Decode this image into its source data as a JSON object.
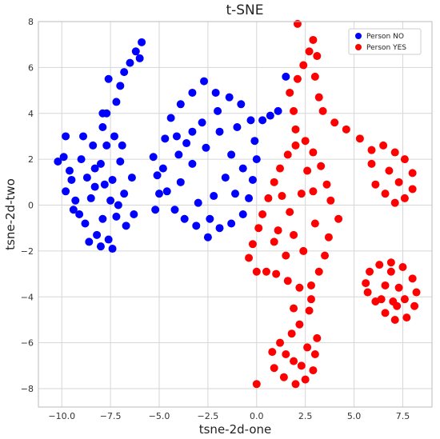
{
  "chart_data": {
    "type": "scatter",
    "title": "t-SNE",
    "xlabel": "tsne-2d-one",
    "ylabel": "tsne-2d-two",
    "xlim": [
      -11.2,
      9.0
    ],
    "ylim": [
      -8.8,
      8.0
    ],
    "grid": true,
    "legend_position": "top-right",
    "x_ticks": [
      -10.0,
      -7.5,
      -5.0,
      -2.5,
      0.0,
      2.5,
      5.0,
      7.5
    ],
    "x_tick_labels": [
      "−10.0",
      "−7.5",
      "−5.0",
      "−2.5",
      "0.0",
      "2.5",
      "5.0",
      "7.5"
    ],
    "y_ticks": [
      -8,
      -6,
      -4,
      -2,
      0,
      2,
      4,
      6,
      8
    ],
    "y_tick_labels": [
      "−8",
      "−6",
      "−4",
      "−2",
      "0",
      "2",
      "4",
      "6",
      "8"
    ],
    "series": [
      {
        "name": "Person NO",
        "color": "#0000ff",
        "points": [
          [
            -10.2,
            1.9
          ],
          [
            -9.9,
            2.1
          ],
          [
            -9.6,
            1.5
          ],
          [
            -9.8,
            0.6
          ],
          [
            -9.3,
            0.2
          ],
          [
            -9.5,
            1.1
          ],
          [
            -9.0,
            2.0
          ],
          [
            -8.7,
            1.2
          ],
          [
            -9.1,
            -0.4
          ],
          [
            -8.5,
            0.3
          ],
          [
            -8.8,
            -0.8
          ],
          [
            -8.2,
            -1.3
          ],
          [
            -8.0,
            -1.8
          ],
          [
            -7.6,
            -1.5
          ],
          [
            -7.9,
            -0.6
          ],
          [
            -8.3,
            0.8
          ],
          [
            -8.0,
            1.8
          ],
          [
            -7.7,
            2.6
          ],
          [
            -8.4,
            2.6
          ],
          [
            -7.9,
            3.4
          ],
          [
            -7.5,
            0.2
          ],
          [
            -7.2,
            -0.5
          ],
          [
            -7.4,
            1.1
          ],
          [
            -7.0,
            1.9
          ],
          [
            -7.3,
            3.0
          ],
          [
            -7.7,
            4.0
          ],
          [
            -7.2,
            4.5
          ],
          [
            -7.0,
            5.2
          ],
          [
            -7.6,
            5.5
          ],
          [
            -6.8,
            5.8
          ],
          [
            -6.5,
            6.2
          ],
          [
            -6.2,
            6.7
          ],
          [
            -5.9,
            7.1
          ],
          [
            -6.0,
            6.4
          ],
          [
            -6.9,
            2.6
          ],
          [
            -6.8,
            0.5
          ],
          [
            -6.7,
            -0.9
          ],
          [
            -7.1,
            0.0
          ],
          [
            -6.4,
            1.2
          ],
          [
            -6.3,
            -0.4
          ],
          [
            -8.9,
            3.0
          ],
          [
            -9.8,
            3.0
          ],
          [
            -7.9,
            4.0
          ],
          [
            -8.6,
            -1.6
          ],
          [
            -7.4,
            -1.9
          ],
          [
            -9.4,
            -0.2
          ],
          [
            -8.3,
            1.6
          ],
          [
            -7.8,
            0.9
          ],
          [
            -5.3,
            2.1
          ],
          [
            -5.1,
            1.3
          ],
          [
            -5.0,
            0.5
          ],
          [
            -5.2,
            -0.2
          ],
          [
            -4.7,
            2.9
          ],
          [
            -4.4,
            3.8
          ],
          [
            -3.9,
            4.4
          ],
          [
            -3.3,
            4.9
          ],
          [
            -2.7,
            5.4
          ],
          [
            -2.1,
            4.9
          ],
          [
            -1.4,
            4.7
          ],
          [
            -0.8,
            4.4
          ],
          [
            -0.3,
            3.7
          ],
          [
            -0.1,
            2.8
          ],
          [
            0.0,
            2.0
          ],
          [
            -0.2,
            1.1
          ],
          [
            -0.4,
            0.3
          ],
          [
            -0.7,
            -0.4
          ],
          [
            -1.3,
            -0.8
          ],
          [
            -1.9,
            -1.0
          ],
          [
            -2.5,
            -1.4
          ],
          [
            -3.1,
            -0.9
          ],
          [
            -3.7,
            -0.6
          ],
          [
            -4.2,
            -0.2
          ],
          [
            -4.6,
            0.6
          ],
          [
            -4.8,
            1.6
          ],
          [
            -3.9,
            1.0
          ],
          [
            -3.3,
            1.8
          ],
          [
            -2.6,
            2.5
          ],
          [
            -1.9,
            3.2
          ],
          [
            -1.3,
            2.2
          ],
          [
            -1.6,
            1.2
          ],
          [
            -2.2,
            0.4
          ],
          [
            -3.0,
            0.1
          ],
          [
            -3.6,
            2.7
          ],
          [
            -2.8,
            3.6
          ],
          [
            -2.0,
            4.1
          ],
          [
            -1.0,
            3.4
          ],
          [
            -0.7,
            1.6
          ],
          [
            -1.1,
            0.5
          ],
          [
            -4.0,
            2.2
          ],
          [
            -3.3,
            3.2
          ],
          [
            0.3,
            3.7
          ],
          [
            0.7,
            3.9
          ],
          [
            1.1,
            4.1
          ],
          [
            1.5,
            5.6
          ],
          [
            -4.1,
            3.0
          ],
          [
            -2.4,
            -0.6
          ]
        ]
      },
      {
        "name": "Person YES",
        "color": "#ff0000",
        "points": [
          [
            0.0,
            -7.8
          ],
          [
            -0.4,
            -2.3
          ],
          [
            -0.2,
            -1.7
          ],
          [
            0.1,
            -1.0
          ],
          [
            0.3,
            -0.4
          ],
          [
            0.6,
            0.3
          ],
          [
            0.9,
            1.0
          ],
          [
            1.2,
            1.6
          ],
          [
            1.6,
            2.2
          ],
          [
            2.0,
            2.6
          ],
          [
            2.5,
            2.8
          ],
          [
            2.9,
            2.3
          ],
          [
            3.3,
            1.7
          ],
          [
            3.6,
            0.9
          ],
          [
            3.8,
            0.2
          ],
          [
            4.2,
            -0.6
          ],
          [
            3.7,
            -1.4
          ],
          [
            3.5,
            -2.2
          ],
          [
            3.2,
            -2.9
          ],
          [
            2.8,
            -3.5
          ],
          [
            2.2,
            -3.6
          ],
          [
            1.6,
            -3.3
          ],
          [
            1.0,
            -3.0
          ],
          [
            0.5,
            -2.9
          ],
          [
            0.0,
            -2.9
          ],
          [
            1.1,
            -1.1
          ],
          [
            1.7,
            -0.3
          ],
          [
            2.3,
            0.5
          ],
          [
            2.6,
            1.5
          ],
          [
            3.0,
            -0.8
          ],
          [
            2.4,
            -2.0
          ],
          [
            1.5,
            -2.2
          ],
          [
            0.9,
            -1.6
          ],
          [
            1.9,
            -1.3
          ],
          [
            2.9,
            0.6
          ],
          [
            1.3,
            0.4
          ],
          [
            2.7,
            -4.6
          ],
          [
            2.2,
            -5.2
          ],
          [
            1.8,
            -5.6
          ],
          [
            1.2,
            -6.0
          ],
          [
            0.8,
            -6.4
          ],
          [
            0.9,
            -7.1
          ],
          [
            1.4,
            -7.5
          ],
          [
            2.0,
            -7.8
          ],
          [
            2.5,
            -7.6
          ],
          [
            2.9,
            -7.2
          ],
          [
            3.0,
            -6.5
          ],
          [
            3.1,
            -5.8
          ],
          [
            2.6,
            -6.2
          ],
          [
            1.9,
            -6.8
          ],
          [
            1.5,
            -6.5
          ],
          [
            2.3,
            -7.0
          ],
          [
            2.8,
            -4.1
          ],
          [
            1.9,
            -4.5
          ],
          [
            1.7,
            4.9
          ],
          [
            2.1,
            5.5
          ],
          [
            2.4,
            6.1
          ],
          [
            2.7,
            6.7
          ],
          [
            2.9,
            7.2
          ],
          [
            3.1,
            6.5
          ],
          [
            3.0,
            5.6
          ],
          [
            3.2,
            4.7
          ],
          [
            3.4,
            4.1
          ],
          [
            4.0,
            3.6
          ],
          [
            4.6,
            3.3
          ],
          [
            5.3,
            2.9
          ],
          [
            5.9,
            2.4
          ],
          [
            6.5,
            2.6
          ],
          [
            7.1,
            2.3
          ],
          [
            7.6,
            2.0
          ],
          [
            8.0,
            1.4
          ],
          [
            8.0,
            0.7
          ],
          [
            7.6,
            0.3
          ],
          [
            7.1,
            0.1
          ],
          [
            6.6,
            0.5
          ],
          [
            6.1,
            0.9
          ],
          [
            5.9,
            1.8
          ],
          [
            6.8,
            1.5
          ],
          [
            7.3,
            1.0
          ],
          [
            2.1,
            7.9
          ],
          [
            1.9,
            4.1
          ],
          [
            2.0,
            3.3
          ],
          [
            5.6,
            -3.4
          ],
          [
            5.8,
            -2.9
          ],
          [
            6.3,
            -2.6
          ],
          [
            6.9,
            -2.5
          ],
          [
            7.5,
            -2.7
          ],
          [
            8.0,
            -3.2
          ],
          [
            8.2,
            -3.8
          ],
          [
            8.1,
            -4.4
          ],
          [
            7.7,
            -4.9
          ],
          [
            7.1,
            -5.0
          ],
          [
            6.6,
            -4.7
          ],
          [
            6.1,
            -4.2
          ],
          [
            5.7,
            -3.8
          ],
          [
            6.6,
            -3.5
          ],
          [
            7.3,
            -3.6
          ],
          [
            7.0,
            -4.2
          ],
          [
            6.4,
            -4.1
          ],
          [
            7.6,
            -4.1
          ],
          [
            7.2,
            -4.4
          ],
          [
            6.9,
            -2.9
          ]
        ]
      }
    ]
  }
}
